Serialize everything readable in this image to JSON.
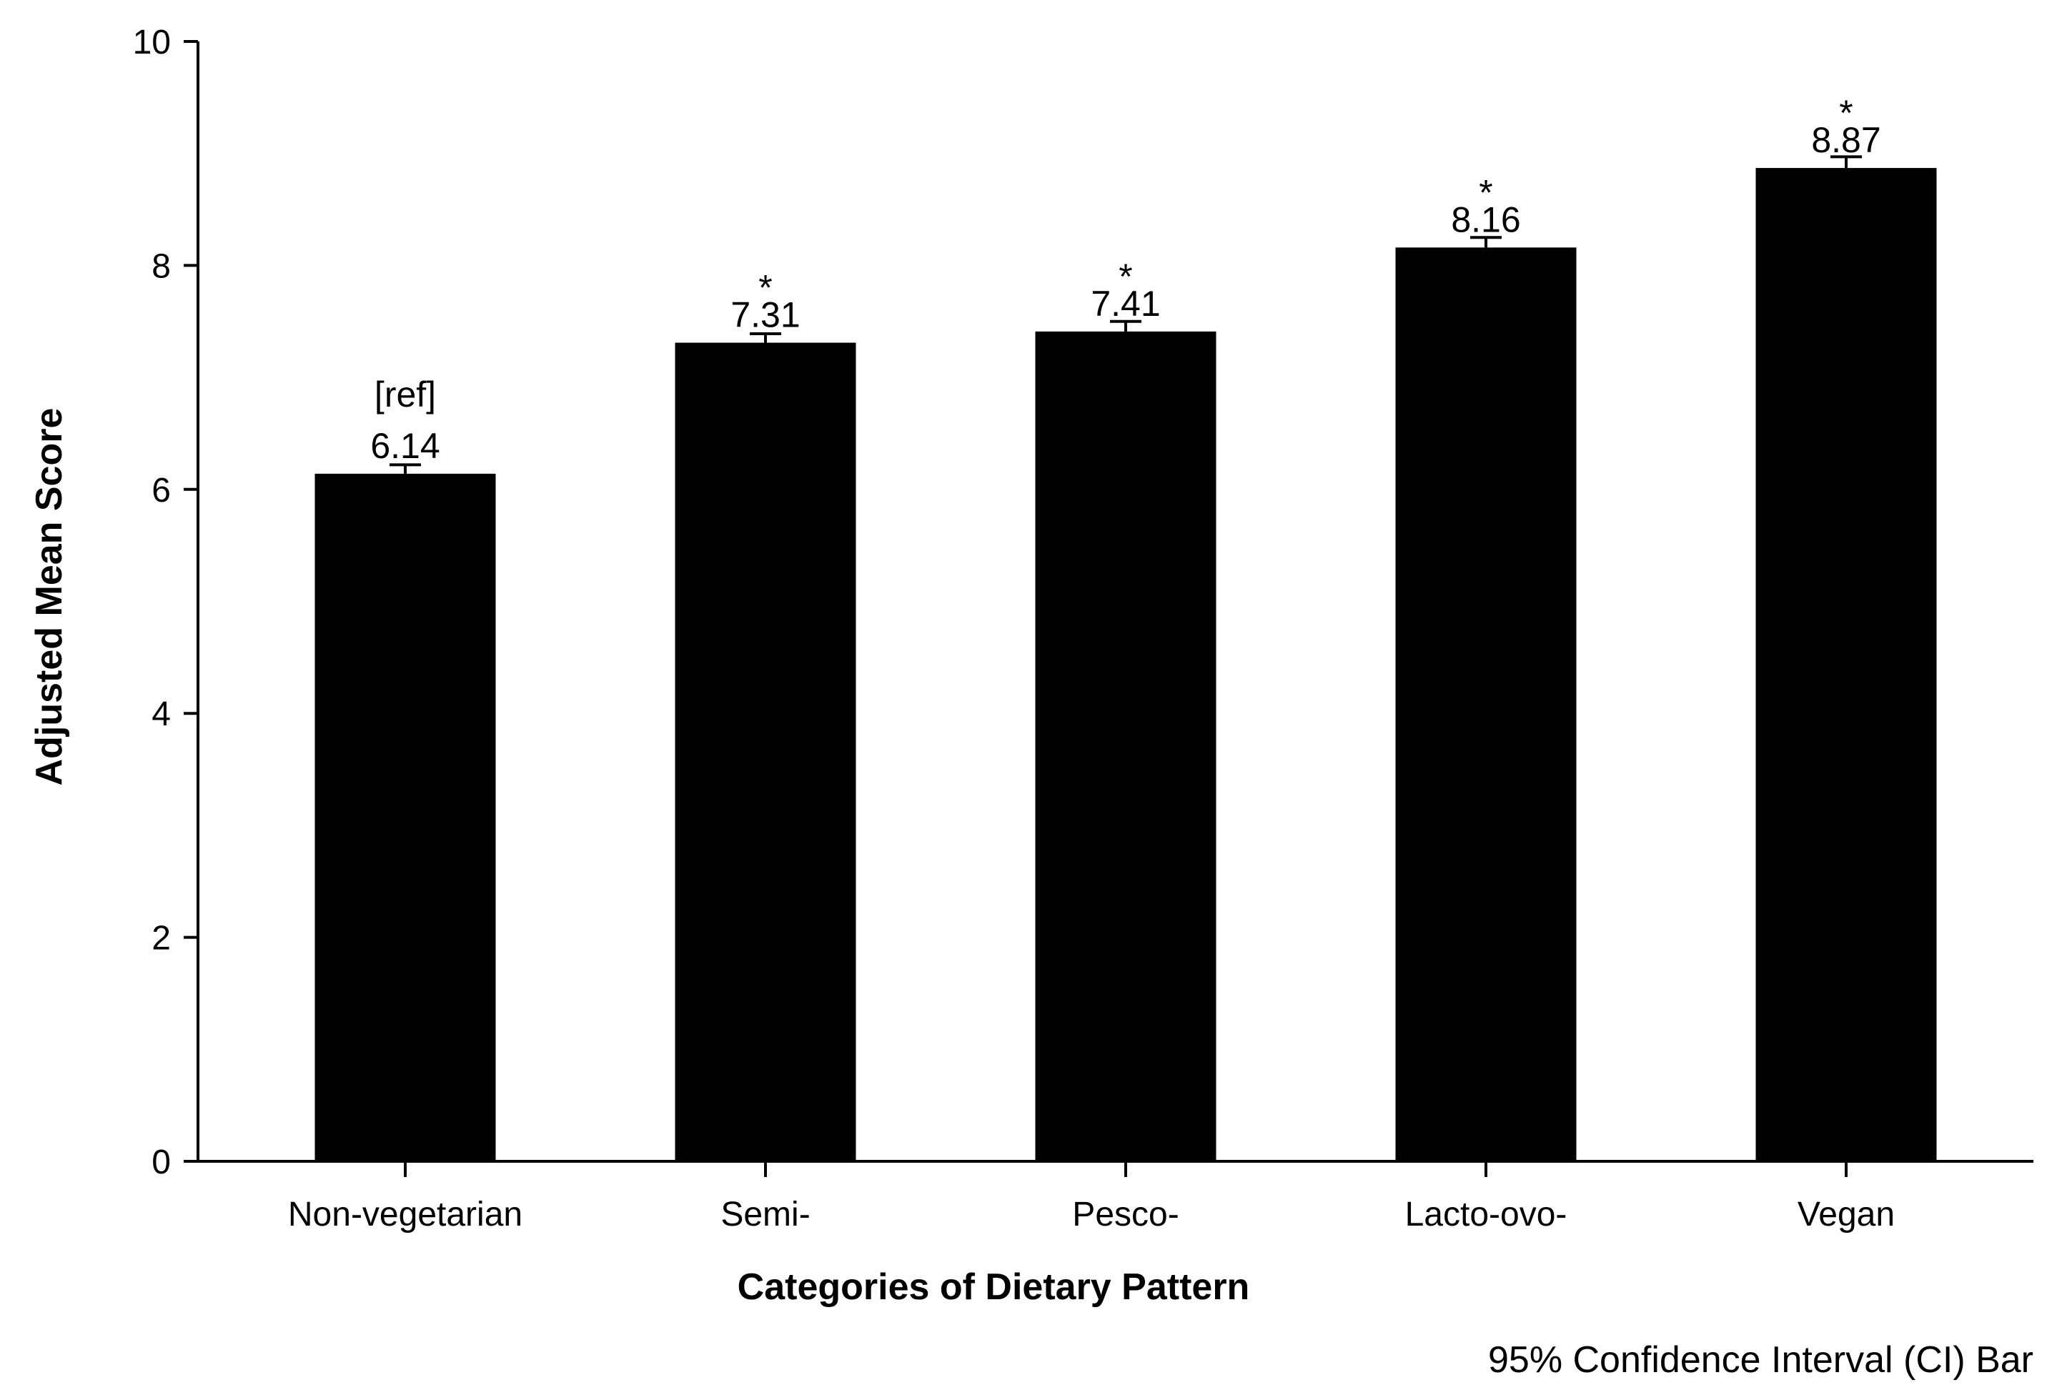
{
  "chart_data": {
    "type": "bar",
    "categories": [
      "Non-vegetarian",
      "Semi-",
      "Pesco-",
      "Lacto-ovo-",
      "Vegan"
    ],
    "values": [
      6.14,
      7.31,
      7.41,
      8.16,
      8.87
    ],
    "value_labels": [
      "6.14",
      "7.31",
      "7.41",
      "8.16",
      "8.87"
    ],
    "ci_upper": [
      6.22,
      7.39,
      7.5,
      8.25,
      8.97
    ],
    "annotations": [
      "[ref]",
      "*",
      "*",
      "*",
      "*"
    ],
    "xlabel": "Categories of Dietary Pattern",
    "ylabel": "Adjusted Mean Score",
    "ylim": [
      0,
      10
    ],
    "yticks": [
      0,
      2,
      4,
      6,
      8,
      10
    ],
    "grid": false,
    "note": "95% Confidence Interval (CI) Bar",
    "bar_color": "#000000"
  }
}
